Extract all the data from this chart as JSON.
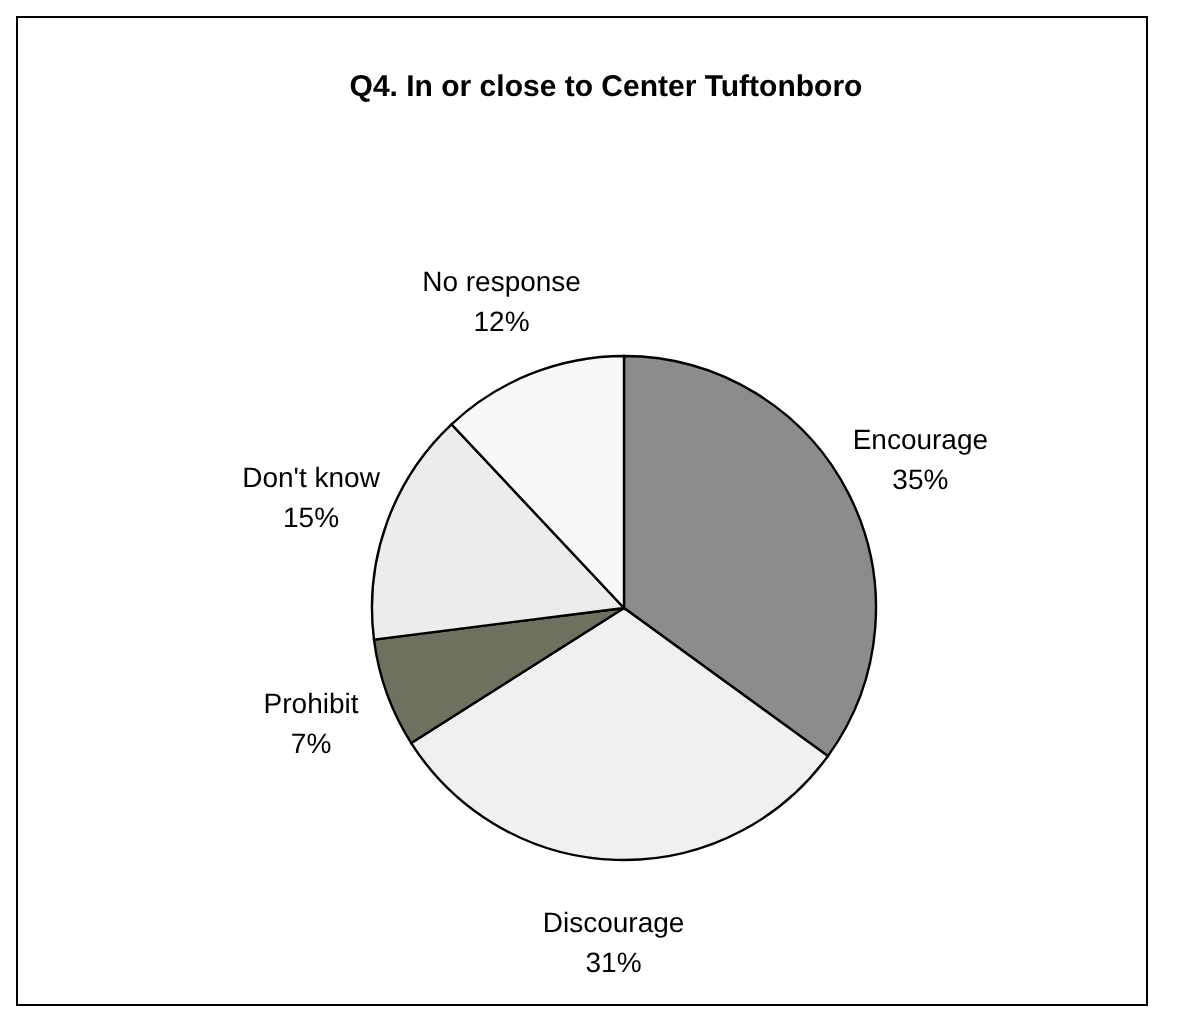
{
  "chart_data": {
    "type": "pie",
    "title": "Q4. In or close to Center Tuftonboro",
    "categories": [
      "Encourage",
      "Discourage",
      "Prohibit",
      "Don't know",
      "No response"
    ],
    "values": [
      35,
      31,
      7,
      15,
      12
    ],
    "value_labels": [
      "35%",
      "31%",
      "7%",
      "15%",
      "12%"
    ],
    "colors": [
      "#8c8c8c",
      "#f0f0f0",
      "#707060",
      "#ececec",
      "#f8f8f8"
    ],
    "legend": false
  }
}
